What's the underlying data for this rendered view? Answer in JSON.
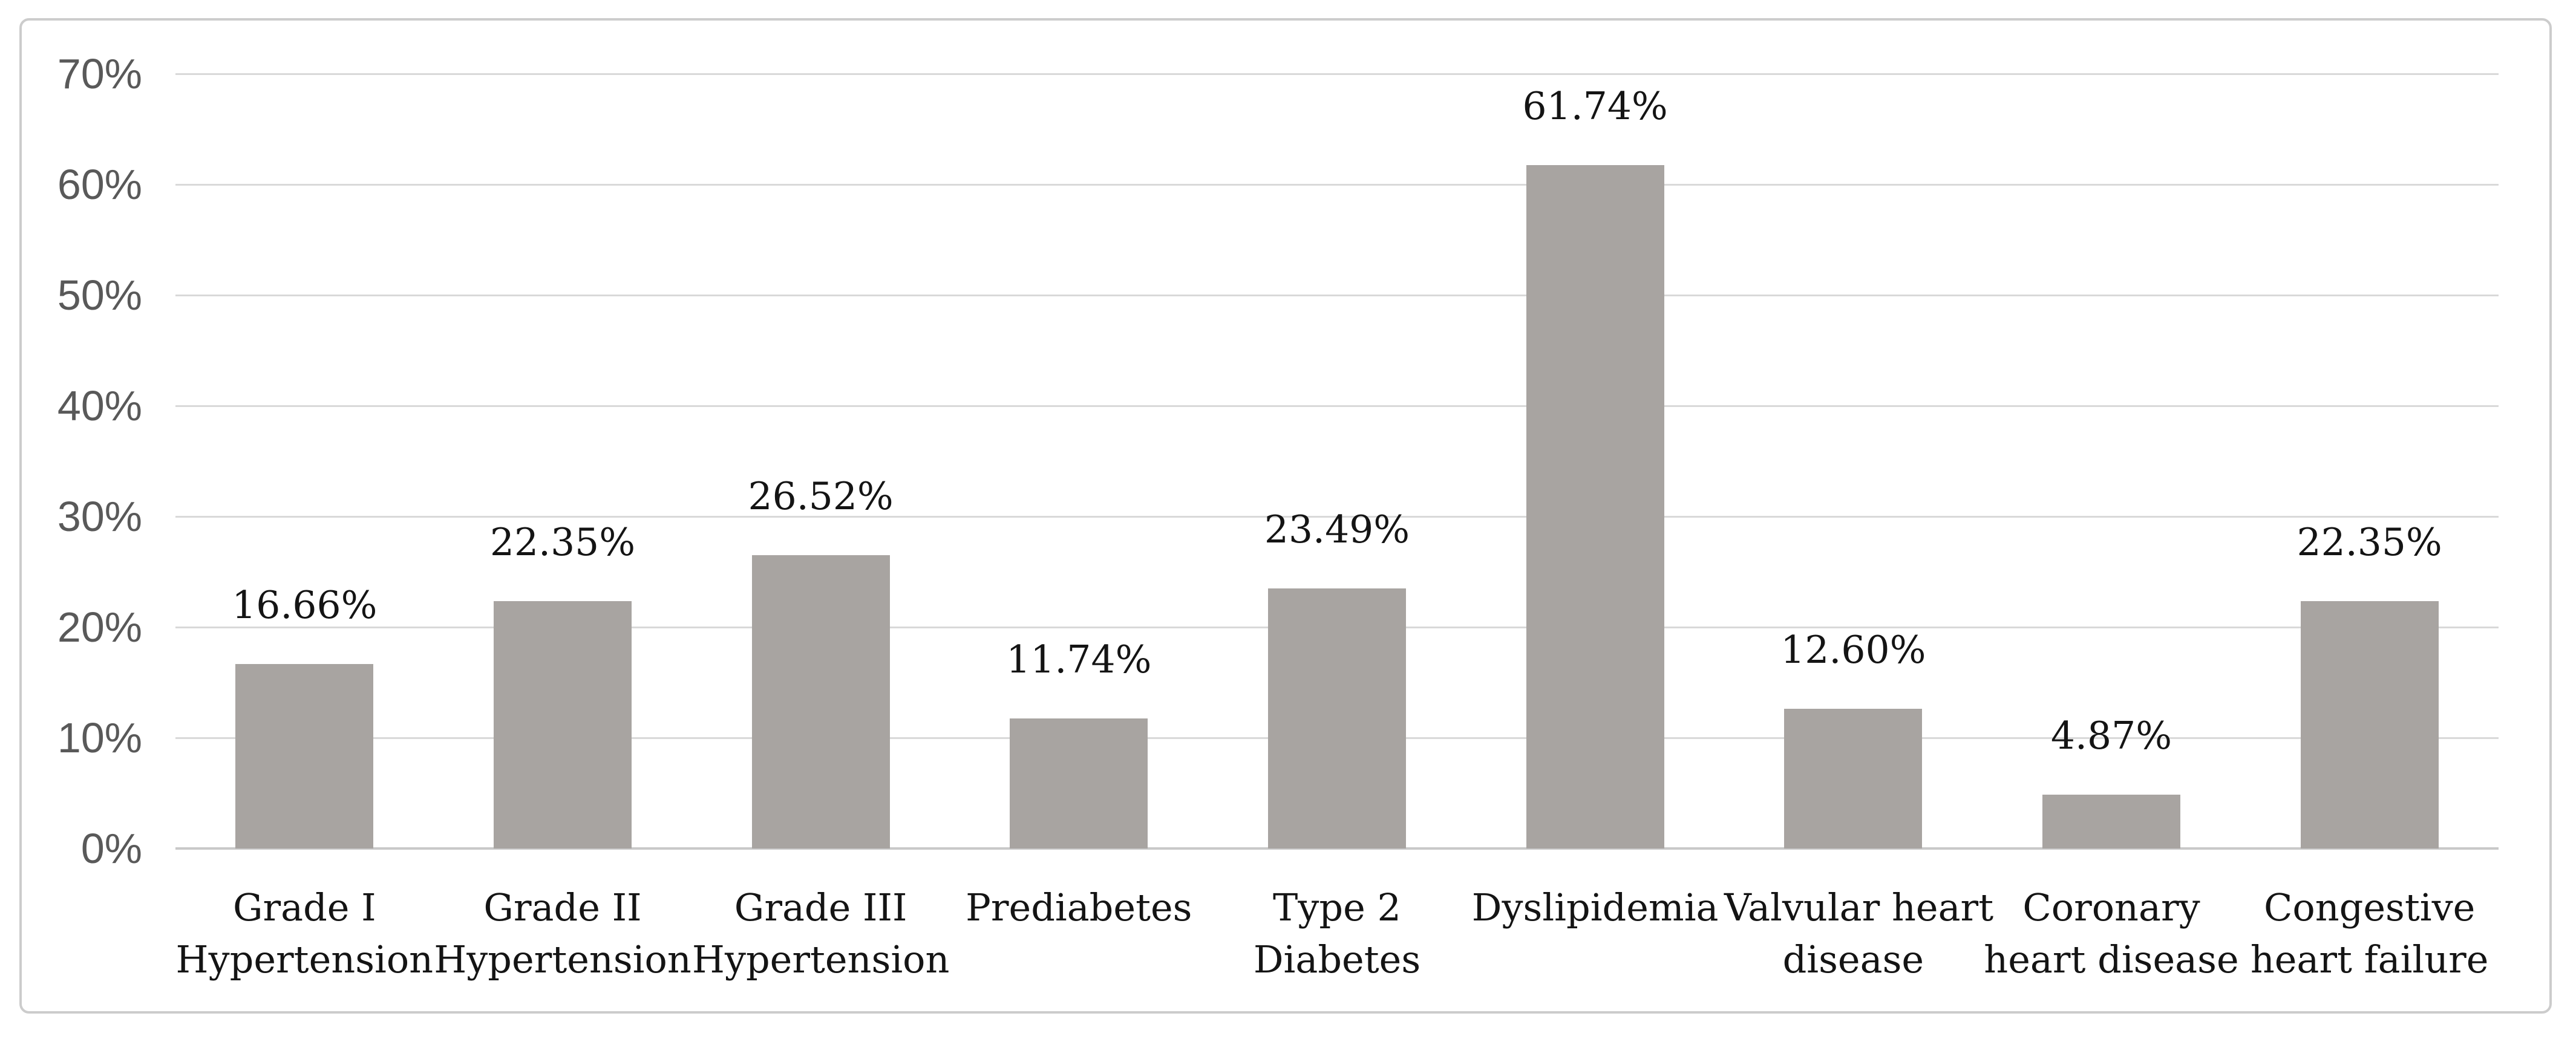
{
  "chart_data": {
    "type": "bar",
    "title": "",
    "xlabel": "",
    "ylabel": "",
    "categories": [
      "Grade I Hypertension",
      "Grade II Hypertension",
      "Grade III Hypertension",
      "Prediabetes",
      "Type 2 Diabetes",
      "Dyslipidemia",
      "Valvular heart disease",
      "Coronary heart disease",
      "Congestive heart failure"
    ],
    "category_lines": [
      [
        "Grade I",
        "Hypertension"
      ],
      [
        "Grade II",
        "Hypertension"
      ],
      [
        "Grade III",
        "Hypertension"
      ],
      [
        "Prediabetes",
        ""
      ],
      [
        "Type 2",
        "Diabetes"
      ],
      [
        "Dyslipidemia",
        ""
      ],
      [
        "Valvular heart",
        "disease"
      ],
      [
        "Coronary",
        "heart disease"
      ],
      [
        "Congestive",
        "heart failure"
      ]
    ],
    "values": [
      16.66,
      22.35,
      26.52,
      11.74,
      23.49,
      61.74,
      12.6,
      4.87,
      22.35
    ],
    "data_labels": [
      "16.66%",
      "22.35%",
      "26.52%",
      "11.74%",
      "23.49%",
      "61.74%",
      "12.60%",
      "4.87%",
      "22.35%"
    ],
    "ylim": [
      0,
      70
    ],
    "ytick_labels": [
      "0%",
      "10%",
      "20%",
      "30%",
      "40%",
      "50%",
      "60%",
      "70%"
    ],
    "grid": "horizontal",
    "legend": "none",
    "colors": {
      "bar_fill": "#a8a4a1",
      "gridline": "#d9d9d9",
      "axis_line": "#c9c9c9",
      "ytick_text": "#595959",
      "label_text": "#141414",
      "figure_border": "#cccccc",
      "background": "#ffffff"
    }
  }
}
